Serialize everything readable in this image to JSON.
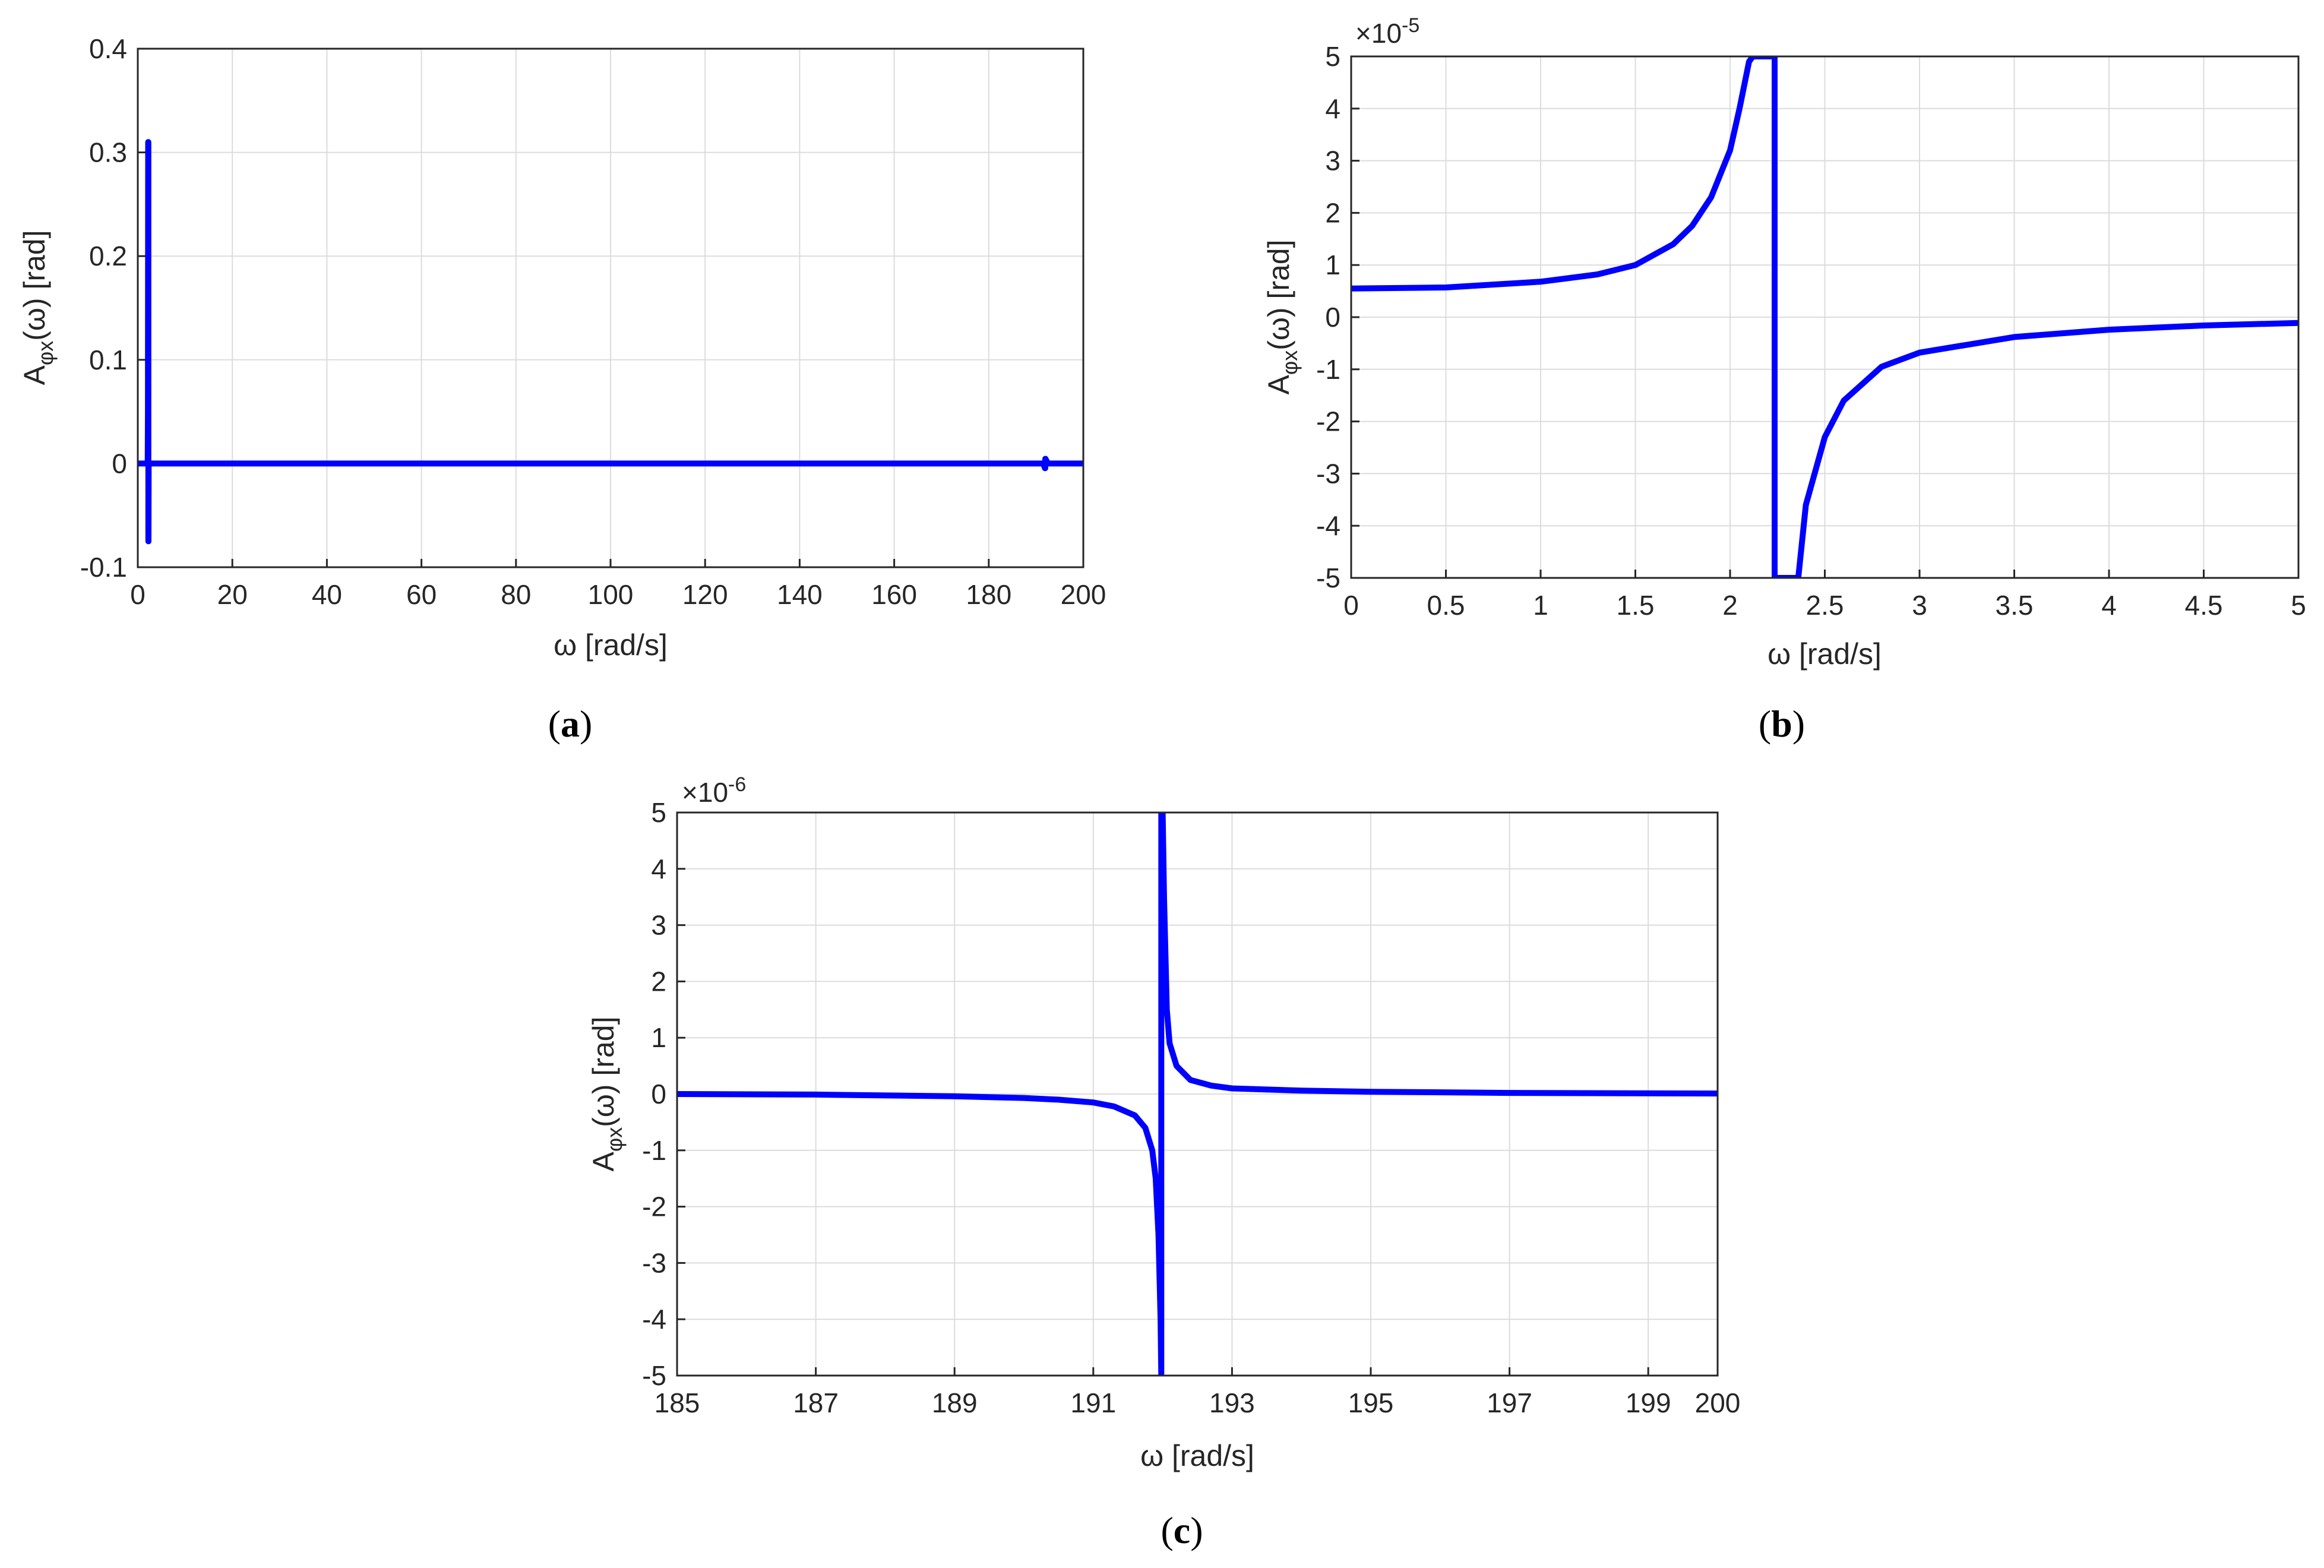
{
  "figure": {
    "panel_labels": [
      "a",
      "b",
      "c"
    ]
  },
  "chart_data": [
    {
      "type": "line",
      "panel": "a",
      "xlabel": "ω [rad/s]",
      "ylabel": "A_φx(ω) [rad]",
      "xlim": [
        0,
        200
      ],
      "ylim": [
        -0.1,
        0.4
      ],
      "xticks": [
        0,
        20,
        40,
        60,
        80,
        100,
        120,
        140,
        160,
        180,
        200
      ],
      "yticks": [
        -0.1,
        0,
        0.1,
        0.2,
        0.3,
        0.4
      ],
      "xtick_labels": [
        "0",
        "20",
        "40",
        "60",
        "80",
        "100",
        "120",
        "140",
        "160",
        "180",
        "200"
      ],
      "ytick_labels": [
        "-0.1",
        "0",
        "0.1",
        "0.2",
        "0.3",
        "0.4"
      ],
      "exponent_label": "",
      "grid": true,
      "series": [
        {
          "color": "#0000ff",
          "x": [
            0,
            2.1,
            2.15,
            2.2,
            2.24,
            2.24,
            2.26,
            2.3,
            2.5,
            3.0,
            191.5,
            191.9,
            191.95,
            191.95,
            192.0,
            192.5,
            200
          ],
          "y": [
            5e-06,
            6e-05,
            0.05,
            0.31,
            0.31,
            -0.075,
            -0.075,
            -0.0002,
            -3e-05,
            -1e-05,
            -1e-06,
            -0.0045,
            -0.0045,
            0.0045,
            0.0045,
            1e-06,
            0
          ]
        }
      ]
    },
    {
      "type": "line",
      "panel": "b",
      "xlabel": "ω [rad/s]",
      "ylabel": "A_φx(ω) [rad]",
      "xlim": [
        0,
        5
      ],
      "ylim": [
        -5,
        5
      ],
      "xticks": [
        0,
        0.5,
        1,
        1.5,
        2,
        2.5,
        3,
        3.5,
        4,
        4.5,
        5
      ],
      "yticks": [
        -5,
        -4,
        -3,
        -2,
        -1,
        0,
        1,
        2,
        3,
        4,
        5
      ],
      "xtick_labels": [
        "0",
        "0.5",
        "1",
        "1.5",
        "2",
        "2.5",
        "3",
        "3.5",
        "4",
        "4.5",
        "5"
      ],
      "ytick_labels": [
        "-5",
        "-4",
        "-3",
        "-2",
        "-1",
        "0",
        "1",
        "2",
        "3",
        "4",
        "5"
      ],
      "exponent_label": "×10^-5",
      "grid": true,
      "resonance_x": 2.235,
      "series": [
        {
          "color": "#0000ff",
          "x": [
            0,
            0.5,
            1.0,
            1.3,
            1.5,
            1.7,
            1.8,
            1.9,
            2.0,
            2.05,
            2.1,
            2.12,
            2.235,
            2.235,
            2.36,
            2.4,
            2.5,
            2.6,
            2.8,
            3.0,
            3.5,
            4.0,
            4.5,
            5.0
          ],
          "y": [
            0.55,
            0.57,
            0.68,
            0.82,
            1.0,
            1.4,
            1.75,
            2.3,
            3.2,
            4.0,
            4.9,
            5.0,
            5.0,
            -5.0,
            -5.0,
            -3.6,
            -2.3,
            -1.6,
            -0.95,
            -0.68,
            -0.38,
            -0.24,
            -0.16,
            -0.11
          ]
        }
      ]
    },
    {
      "type": "line",
      "panel": "c",
      "xlabel": "ω [rad/s]",
      "ylabel": "A_φx(ω) [rad]",
      "xlim": [
        185,
        200
      ],
      "ylim": [
        -5,
        5
      ],
      "xticks": [
        185,
        187,
        189,
        191,
        193,
        195,
        197,
        199,
        200
      ],
      "yticks": [
        -5,
        -4,
        -3,
        -2,
        -1,
        0,
        1,
        2,
        3,
        4,
        5
      ],
      "xtick_labels": [
        "185",
        "187",
        "189",
        "191",
        "193",
        "195",
        "197",
        "199",
        "200"
      ],
      "ytick_labels": [
        "-5",
        "-4",
        "-3",
        "-2",
        "-1",
        "0",
        "1",
        "2",
        "3",
        "4",
        "5"
      ],
      "exponent_label": "×10^-6",
      "grid": true,
      "series": [
        {
          "color": "#0000ff",
          "x": [
            185,
            187,
            189,
            190,
            190.5,
            191,
            191.3,
            191.6,
            191.75,
            191.85,
            191.9,
            191.94,
            191.97,
            191.98,
            191.98,
            192.0,
            192.02,
            192.06,
            192.1,
            192.2,
            192.4,
            192.7,
            193,
            194,
            195,
            197,
            200
          ],
          "y": [
            0,
            -0.01,
            -0.04,
            -0.07,
            -0.1,
            -0.15,
            -0.22,
            -0.38,
            -0.6,
            -1.0,
            -1.5,
            -2.5,
            -4.0,
            -5.0,
            5.0,
            5.0,
            3.5,
            1.5,
            0.9,
            0.5,
            0.25,
            0.15,
            0.1,
            0.06,
            0.04,
            0.02,
            0.01
          ]
        }
      ]
    }
  ]
}
